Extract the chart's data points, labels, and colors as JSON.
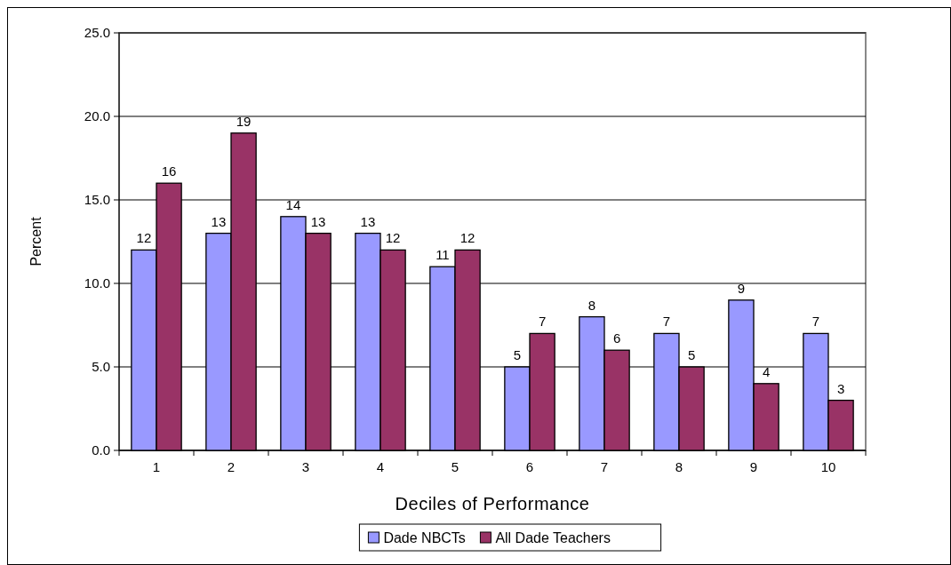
{
  "chart_data": {
    "type": "bar",
    "xlabel": "Deciles of Performance",
    "ylabel": "Percent",
    "categories": [
      "1",
      "2",
      "3",
      "4",
      "5",
      "6",
      "7",
      "8",
      "9",
      "10"
    ],
    "series": [
      {
        "name": "Dade NBCTs",
        "color": "#9999ff",
        "values": [
          12,
          13,
          14,
          13,
          11,
          5,
          8,
          7,
          9,
          7
        ]
      },
      {
        "name": "All Dade Teachers",
        "color": "#993366",
        "values": [
          16,
          19,
          13,
          12,
          12,
          7,
          6,
          5,
          4,
          3
        ]
      }
    ],
    "ylim": [
      0,
      25
    ],
    "yticks": [
      {
        "value": 0,
        "label": "0.0"
      },
      {
        "value": 5,
        "label": "5.0"
      },
      {
        "value": 10,
        "label": "10.0"
      },
      {
        "value": 15,
        "label": "15.0"
      },
      {
        "value": 20,
        "label": "20.0"
      },
      {
        "value": 25,
        "label": "25.0"
      }
    ],
    "grid": "y",
    "legend": "bottom",
    "data_labels": true
  }
}
